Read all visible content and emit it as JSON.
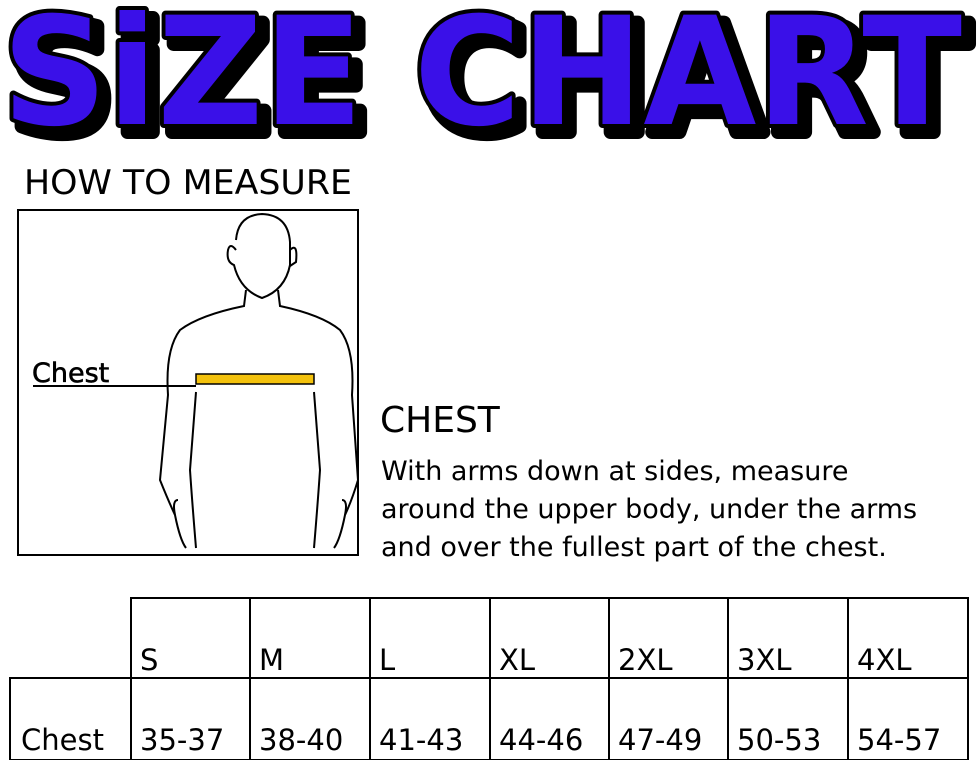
{
  "title": "SiZE CHART",
  "how_to_measure": "HOW TO MEASURE",
  "figure_label": "Chest",
  "section": {
    "heading": "CHEST",
    "lines": [
      "With arms down at sides, measure",
      "around the upper body, under the arms",
      "and over the fullest part of the chest."
    ]
  },
  "table": {
    "headers": [
      "S",
      "M",
      "L",
      "XL",
      "2XL",
      "3XL",
      "4XL"
    ],
    "rows": [
      {
        "label": "Chest",
        "values": [
          "35-37",
          "38-40",
          "41-43",
          "44-46",
          "47-49",
          "50-53",
          "54-57"
        ]
      }
    ]
  }
}
